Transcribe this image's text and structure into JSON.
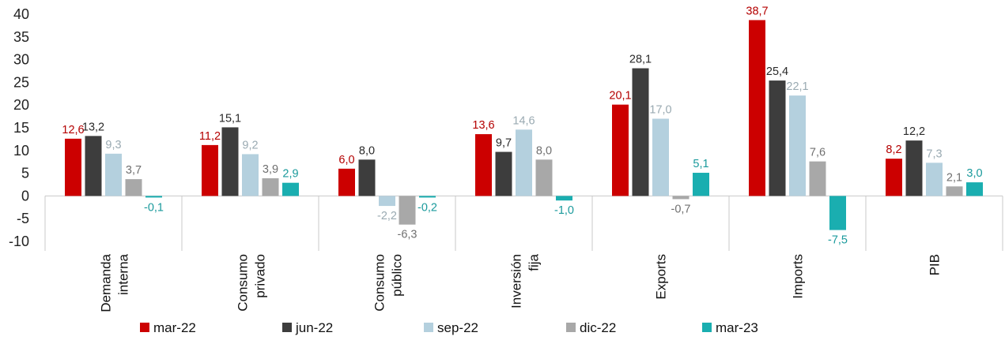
{
  "chart_data": {
    "type": "bar",
    "title": "",
    "xlabel": "",
    "ylabel": "",
    "ylim": [
      -10,
      40
    ],
    "yticks": [
      40,
      35,
      30,
      25,
      20,
      15,
      10,
      5,
      0,
      -5,
      -10
    ],
    "ytick_labels": [
      "40",
      "35",
      "30",
      "25",
      "20",
      "15",
      "10",
      "5",
      "0",
      "-5",
      "-10"
    ],
    "grid": false,
    "legend_position": "bottom",
    "categories": [
      [
        "Demanda",
        "interna"
      ],
      [
        "Consumo",
        "privado"
      ],
      [
        "Consumo",
        "público"
      ],
      [
        "Inversión",
        "fija"
      ],
      [
        "Exports"
      ],
      [
        "Imports"
      ],
      [
        "PIB"
      ]
    ],
    "series": [
      {
        "name": "mar-22",
        "color": "#cc0000",
        "label_color": "#b40000",
        "values": [
          12.6,
          11.2,
          6.0,
          13.6,
          20.1,
          38.7,
          8.2
        ],
        "labels": [
          "12,6",
          "11,2",
          "6,0",
          "13,6",
          "20,1",
          "38,7",
          "8,2"
        ]
      },
      {
        "name": "jun-22",
        "color": "#3d3d3d",
        "label_color": "#2a2a2a",
        "values": [
          13.2,
          15.1,
          8.0,
          9.7,
          28.1,
          25.4,
          12.2
        ],
        "labels": [
          "13,2",
          "15,1",
          "8,0",
          "9,7",
          "28,1",
          "25,4",
          "12,2"
        ]
      },
      {
        "name": "sep-22",
        "color": "#b4d0de",
        "label_color": "#9aaab2",
        "values": [
          9.3,
          9.2,
          -2.2,
          14.6,
          17.0,
          22.1,
          7.3
        ],
        "labels": [
          "9,3",
          "9,2",
          "-2,2",
          "14,6",
          "17,0",
          "22,1",
          "7,3"
        ]
      },
      {
        "name": "dic-22",
        "color": "#a8a8a8",
        "label_color": "#707070",
        "values": [
          3.7,
          3.9,
          -6.3,
          8.0,
          -0.7,
          7.6,
          2.1
        ],
        "labels": [
          "3,7",
          "3,9",
          "-6,3",
          "8,0",
          "-0,7",
          "7,6",
          "2,1"
        ]
      },
      {
        "name": "mar-23",
        "color": "#1aaeb0",
        "label_color": "#1a9a9c",
        "values": [
          -0.1,
          2.9,
          -0.2,
          -1.0,
          5.1,
          -7.5,
          3.0
        ],
        "labels": [
          "-0,1",
          "2,9",
          "-0,2",
          "-1,0",
          "5,1",
          "-7,5",
          "3,0"
        ]
      }
    ]
  }
}
